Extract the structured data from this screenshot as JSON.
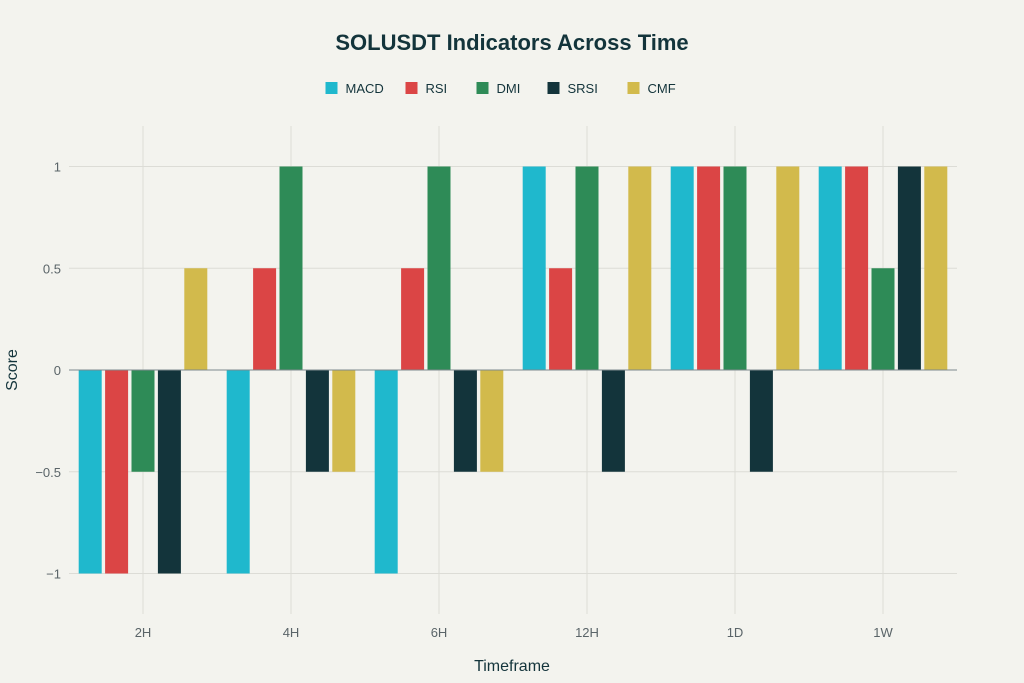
{
  "chart_data": {
    "type": "bar",
    "title": "SOLUSDT Indicators Across Time",
    "xlabel": "Timeframe",
    "ylabel": "Score",
    "categories": [
      "2H",
      "4H",
      "6H",
      "12H",
      "1D",
      "1W"
    ],
    "ylim": [
      -1.2,
      1.2
    ],
    "yticks": [
      -1,
      -0.5,
      0,
      0.5,
      1
    ],
    "ytick_labels": [
      "−1",
      "−0.5",
      "0",
      "0.5",
      "1"
    ],
    "grid": true,
    "legend_position": "top-center",
    "series": [
      {
        "name": "MACD",
        "color": "#1fb8cd",
        "values": [
          -1,
          -1,
          -1,
          1,
          1,
          1
        ]
      },
      {
        "name": "RSI",
        "color": "#db4545",
        "values": [
          -1,
          0.5,
          0.5,
          0.5,
          1,
          1
        ]
      },
      {
        "name": "DMI",
        "color": "#2e8b57",
        "values": [
          -0.5,
          1,
          1,
          1,
          1,
          0.5
        ]
      },
      {
        "name": "SRSI",
        "color": "#13343b",
        "values": [
          -1,
          -0.5,
          -0.5,
          -0.5,
          -0.5,
          1
        ]
      },
      {
        "name": "CMF",
        "color": "#d2ba4c",
        "values": [
          0.5,
          -0.5,
          -0.5,
          1,
          1,
          1
        ]
      }
    ]
  }
}
